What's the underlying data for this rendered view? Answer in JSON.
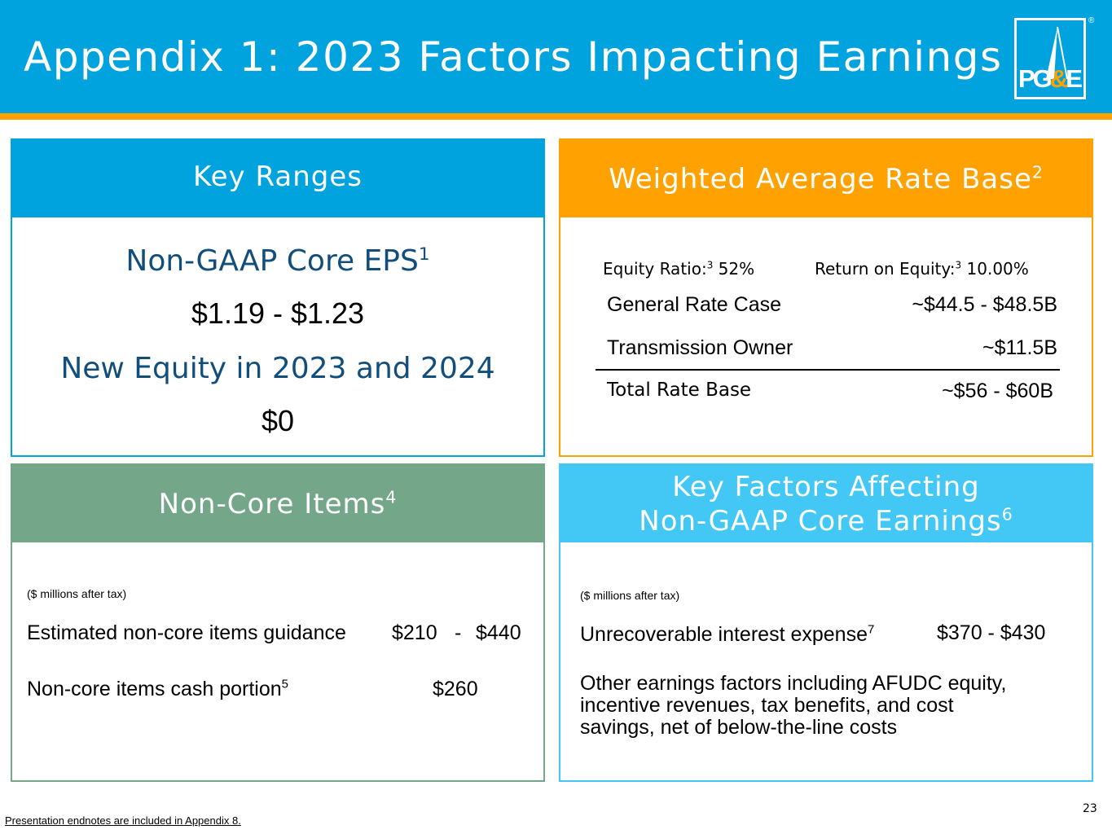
{
  "header": {
    "title": "Appendix 1: 2023 Factors Impacting Earnings",
    "logo_text_left": "PG",
    "logo_text_amp": "&",
    "logo_text_right": "E",
    "registered_mark": "®",
    "colors": {
      "header": "#00a3de",
      "stripe": "#ffa100"
    }
  },
  "key_ranges": {
    "title": "Key Ranges",
    "eps_label": "Non-GAAP Core EPS",
    "eps_note": "1",
    "eps_value": "$1.19 - $1.23",
    "equity_label": "New Equity in 2023 and 2024",
    "equity_value": "$0"
  },
  "rate_base": {
    "title": "Weighted Average Rate Base",
    "title_note": "2",
    "equity_ratio_label": "Equity Ratio:",
    "equity_ratio_note": "3",
    "equity_ratio_value": " 52%",
    "roe_label": "Return on Equity:",
    "roe_note": "3",
    "roe_value": " 10.00%",
    "rows": [
      {
        "label": "General Rate Case",
        "value": "~$44.5 - $48.5B"
      },
      {
        "label": "Transmission Owner",
        "value": "~$11.5B"
      }
    ],
    "total": {
      "label": "Total Rate Base",
      "value": "~$56 - $60B"
    }
  },
  "non_core": {
    "title": "Non-Core Items",
    "title_note": "4",
    "units": "($ millions after tax)",
    "guidance_label": "Estimated non-core items guidance",
    "guidance_low": "$210",
    "guidance_dash": "-",
    "guidance_high": "$440",
    "cash_label": "Non-core items cash portion",
    "cash_note": "5",
    "cash_value": "$260"
  },
  "key_factors": {
    "title_line1": "Key Factors Affecting",
    "title_line2": "Non-GAAP Core Earnings",
    "title_note": "6",
    "units": "($ millions after tax)",
    "interest_label": "Unrecoverable interest expense",
    "interest_note": "7",
    "interest_value": "$370 - $430",
    "other_line1": "Other earnings factors including AFUDC equity,",
    "other_line2": "incentive revenues, tax benefits, and cost",
    "other_line3": "savings, net of below-the-line costs"
  },
  "footer": {
    "page_number": "23",
    "endnote": "Presentation endnotes are included in Appendix 8."
  }
}
